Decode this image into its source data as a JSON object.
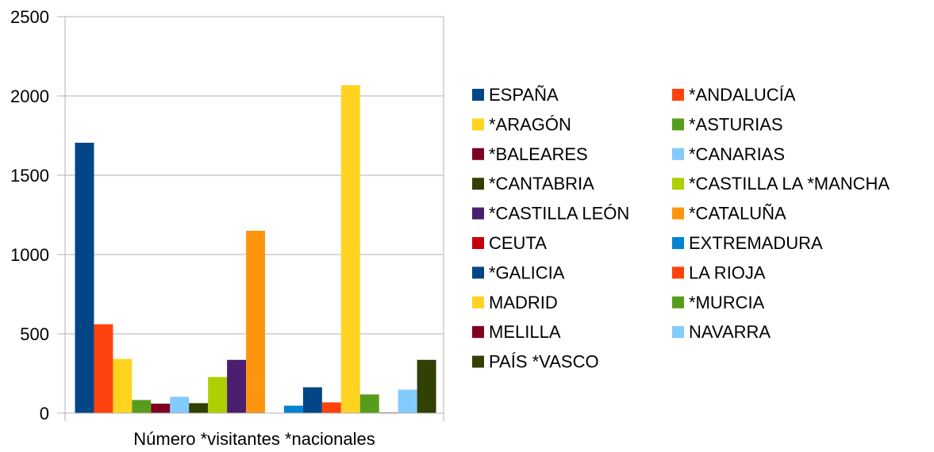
{
  "chart_data": {
    "type": "bar",
    "categories": [
      "Número *visitantes *nacionales"
    ],
    "ylim": [
      0,
      2500
    ],
    "yticks": [
      0,
      500,
      1000,
      1500,
      2000,
      2500
    ],
    "grid": true,
    "legend_position": "right",
    "series": [
      {
        "name": "ESPAÑA",
        "color": "#004586",
        "values": [
          1705
        ]
      },
      {
        "name": "*ANDALUCÍA",
        "color": "#ff420e",
        "values": [
          560
        ]
      },
      {
        "name": "*ARAGÓN",
        "color": "#ffd320",
        "values": [
          342
        ]
      },
      {
        "name": "*ASTURIAS",
        "color": "#579d1c",
        "values": [
          83
        ]
      },
      {
        "name": "*BALEARES",
        "color": "#7e0021",
        "values": [
          60
        ]
      },
      {
        "name": "*CANARIAS",
        "color": "#83caff",
        "values": [
          103
        ]
      },
      {
        "name": "*CANTABRIA",
        "color": "#314004",
        "values": [
          63
        ]
      },
      {
        "name": "*CASTILLA LA *MANCHA",
        "color": "#aecf00",
        "values": [
          228
        ]
      },
      {
        "name": "*CASTILLA LEÓN",
        "color": "#4b1f6f",
        "values": [
          336
        ]
      },
      {
        "name": "*CATALUÑA",
        "color": "#ff950e",
        "values": [
          1150
        ]
      },
      {
        "name": "CEUTA",
        "color": "#c5000b",
        "values": [
          0
        ]
      },
      {
        "name": "EXTREMADURA",
        "color": "#0084d1",
        "values": [
          47
        ]
      },
      {
        "name": "*GALICIA",
        "color": "#004586",
        "values": [
          163
        ]
      },
      {
        "name": "LA RIOJA",
        "color": "#ff420e",
        "values": [
          68
        ]
      },
      {
        "name": "MADRID",
        "color": "#ffd320",
        "values": [
          2068
        ]
      },
      {
        "name": "*MURCIA",
        "color": "#579d1c",
        "values": [
          118
        ]
      },
      {
        "name": "MELILLA",
        "color": "#7e0021",
        "values": [
          4
        ]
      },
      {
        "name": "NAVARRA",
        "color": "#83caff",
        "values": [
          148
        ]
      },
      {
        "name": "PAÍS *VASCO",
        "color": "#314004",
        "values": [
          336
        ]
      }
    ]
  }
}
